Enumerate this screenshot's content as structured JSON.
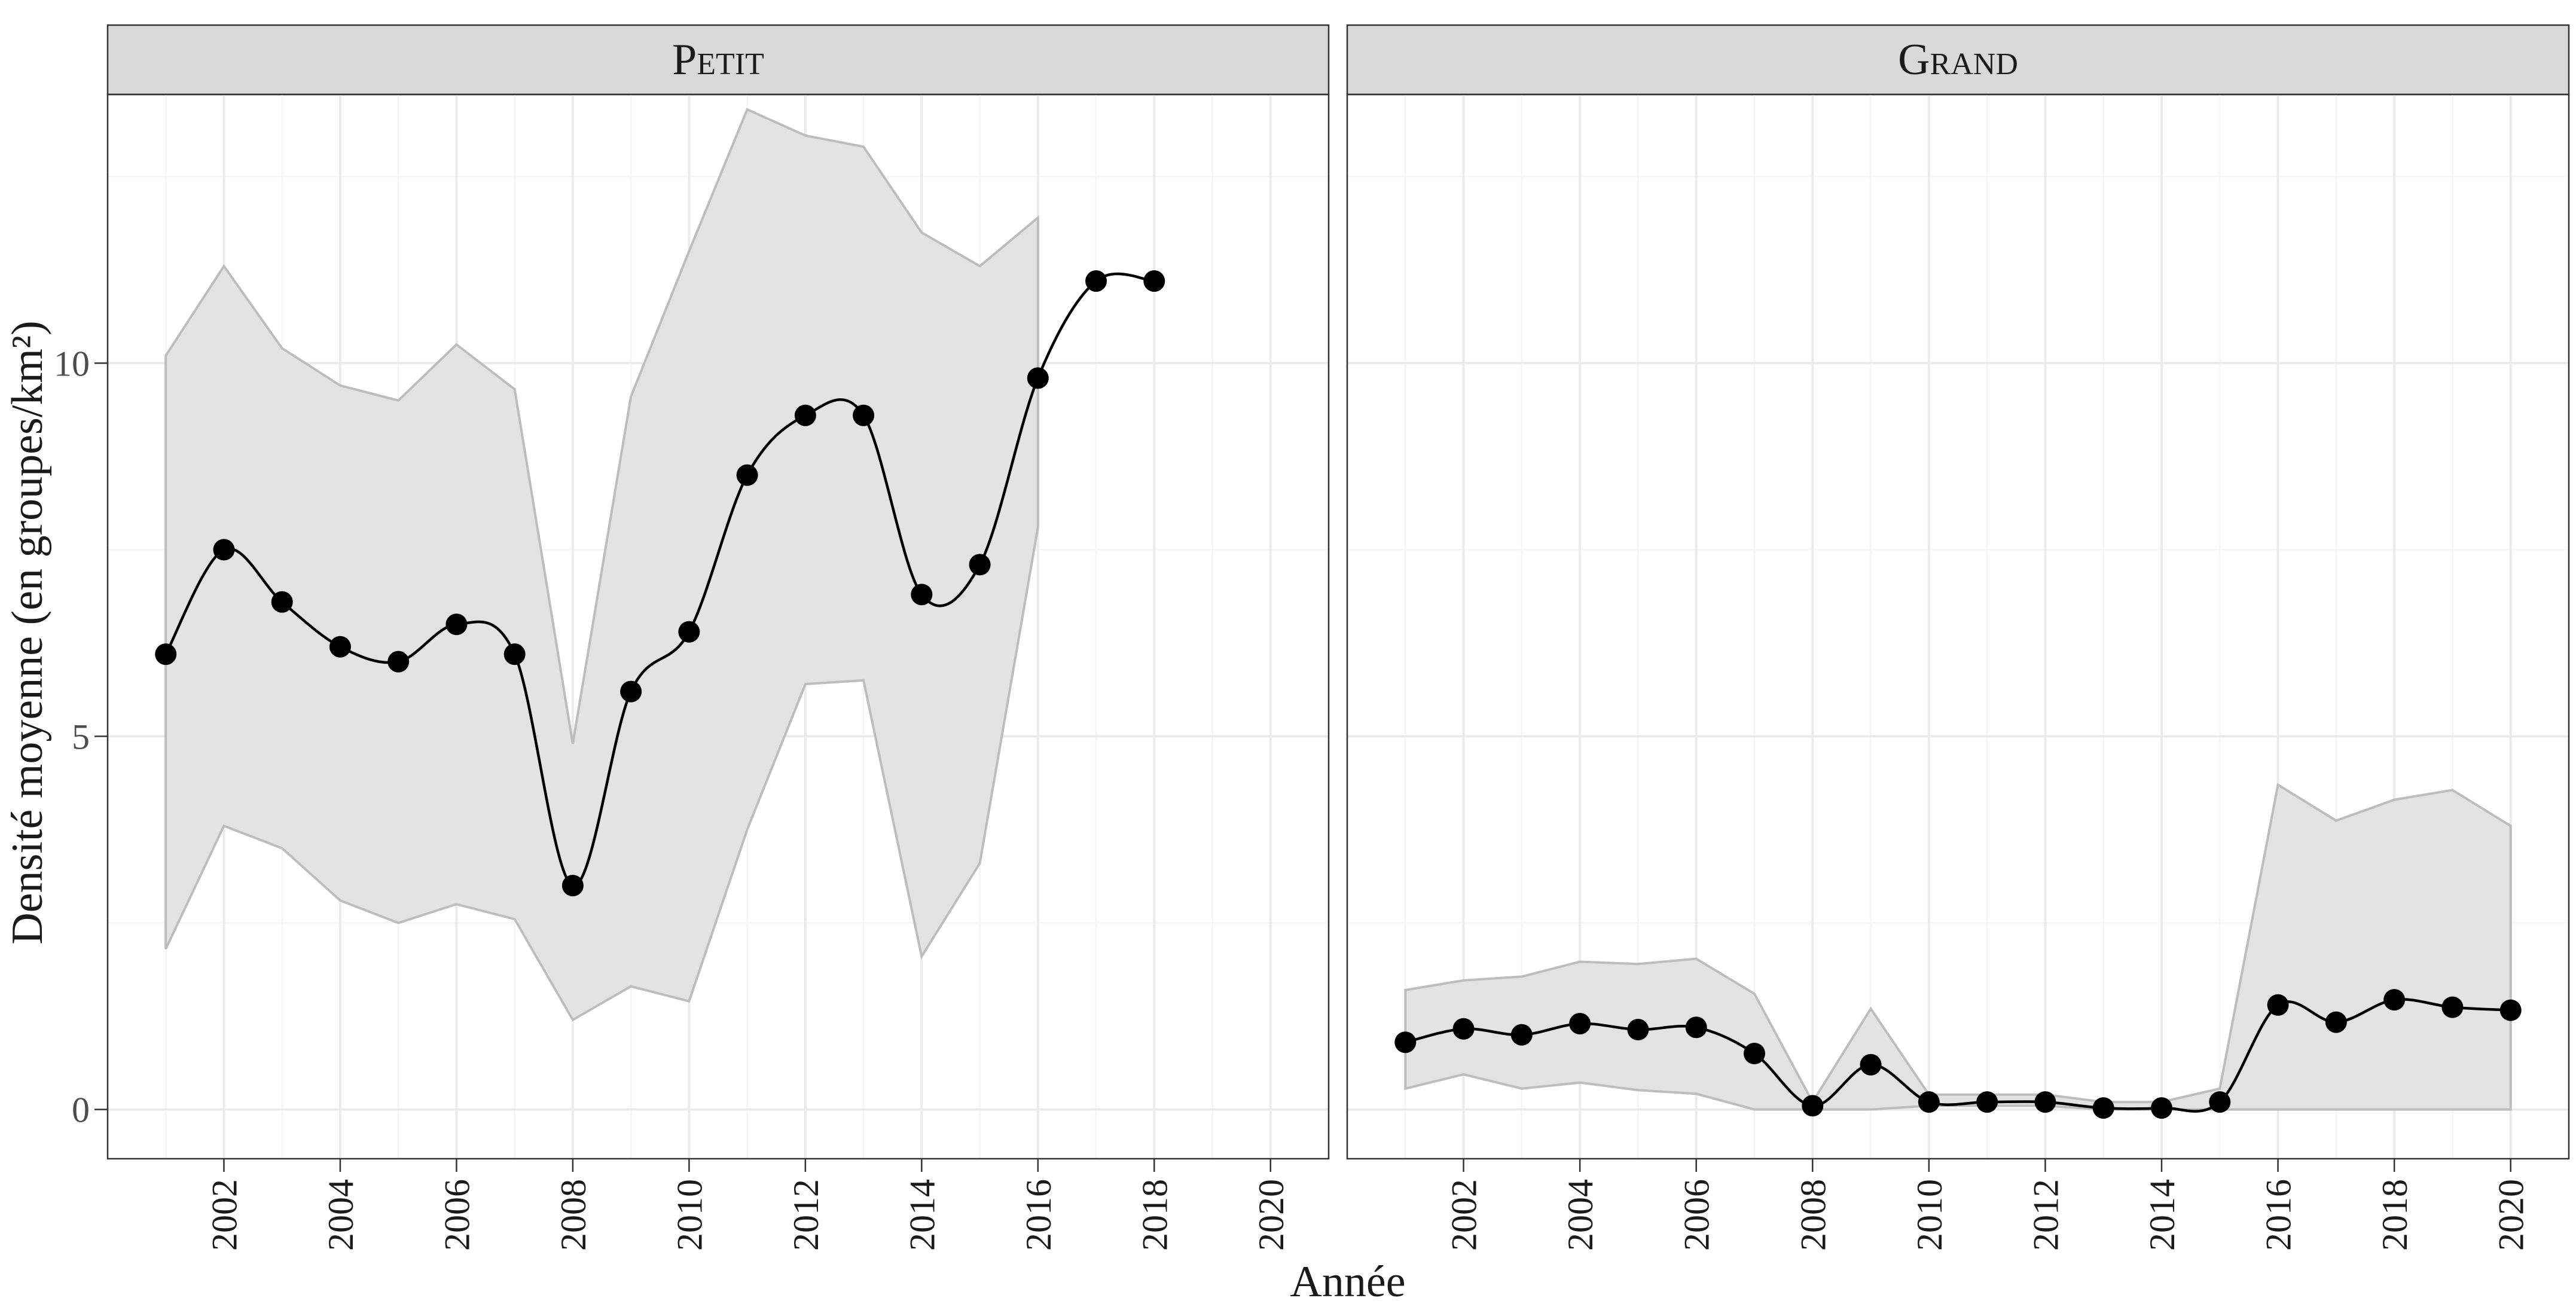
{
  "chart_data": {
    "type": "line",
    "xlabel": "Année",
    "ylabel": "Densité moyenne (en groupes/km²)",
    "x_ticks": [
      2002,
      2004,
      2006,
      2008,
      2010,
      2012,
      2014,
      2016,
      2018,
      2020
    ],
    "y_ticks": [
      0,
      5,
      10
    ],
    "y_tick_labels": [
      "0",
      "5",
      "10"
    ],
    "xlim": [
      2000,
      2021
    ],
    "ylim": [
      -0.66,
      13.6
    ],
    "grid": true,
    "facets": [
      {
        "label": "Petit",
        "points": [
          {
            "x": 2001,
            "y": 6.1
          },
          {
            "x": 2002,
            "y": 7.5
          },
          {
            "x": 2003,
            "y": 6.8
          },
          {
            "x": 2004,
            "y": 6.2
          },
          {
            "x": 2005,
            "y": 6.0
          },
          {
            "x": 2006,
            "y": 6.5
          },
          {
            "x": 2007,
            "y": 6.1
          },
          {
            "x": 2008,
            "y": 3.0
          },
          {
            "x": 2009,
            "y": 5.6
          },
          {
            "x": 2010,
            "y": 6.4
          },
          {
            "x": 2011,
            "y": 8.5
          },
          {
            "x": 2012,
            "y": 9.3
          },
          {
            "x": 2013,
            "y": 9.3
          },
          {
            "x": 2014,
            "y": 6.9
          },
          {
            "x": 2015,
            "y": 7.3
          },
          {
            "x": 2016,
            "y": 9.8
          },
          {
            "x": 2017,
            "y": 11.1
          },
          {
            "x": 2018,
            "y": 11.1
          }
        ],
        "ribbon": [
          {
            "x": 2001,
            "lower": 2.15,
            "upper": 10.1
          },
          {
            "x": 2002,
            "lower": 3.8,
            "upper": 11.3
          },
          {
            "x": 2003,
            "lower": 3.5,
            "upper": 10.2
          },
          {
            "x": 2004,
            "lower": 2.8,
            "upper": 9.7
          },
          {
            "x": 2005,
            "lower": 2.5,
            "upper": 9.5
          },
          {
            "x": 2006,
            "lower": 2.75,
            "upper": 10.25
          },
          {
            "x": 2007,
            "lower": 2.55,
            "upper": 9.65
          },
          {
            "x": 2008,
            "lower": 1.2,
            "upper": 4.9
          },
          {
            "x": 2009,
            "lower": 1.65,
            "upper": 9.55
          },
          {
            "x": 2010,
            "lower": 1.45,
            "upper": 11.5
          },
          {
            "x": 2011,
            "lower": 3.75,
            "upper": 13.4
          },
          {
            "x": 2012,
            "lower": 5.7,
            "upper": 13.05
          },
          {
            "x": 2013,
            "lower": 5.75,
            "upper": 12.9
          },
          {
            "x": 2014,
            "lower": 2.05,
            "upper": 11.75
          },
          {
            "x": 2015,
            "lower": 3.3,
            "upper": 11.3
          },
          {
            "x": 2016,
            "lower": 7.8,
            "upper": 11.95
          }
        ]
      },
      {
        "label": "Grand",
        "points": [
          {
            "x": 2001,
            "y": 0.9
          },
          {
            "x": 2002,
            "y": 1.08
          },
          {
            "x": 2003,
            "y": 1.0
          },
          {
            "x": 2004,
            "y": 1.15
          },
          {
            "x": 2005,
            "y": 1.07
          },
          {
            "x": 2006,
            "y": 1.1
          },
          {
            "x": 2007,
            "y": 0.75
          },
          {
            "x": 2008,
            "y": 0.05
          },
          {
            "x": 2009,
            "y": 0.6
          },
          {
            "x": 2010,
            "y": 0.1
          },
          {
            "x": 2011,
            "y": 0.1
          },
          {
            "x": 2012,
            "y": 0.1
          },
          {
            "x": 2013,
            "y": 0.02
          },
          {
            "x": 2014,
            "y": 0.02
          },
          {
            "x": 2015,
            "y": 0.1
          },
          {
            "x": 2016,
            "y": 1.4
          },
          {
            "x": 2017,
            "y": 1.17
          },
          {
            "x": 2018,
            "y": 1.47
          },
          {
            "x": 2019,
            "y": 1.37
          },
          {
            "x": 2020,
            "y": 1.33
          }
        ],
        "ribbon": [
          {
            "x": 2001,
            "lower": 0.28,
            "upper": 1.6
          },
          {
            "x": 2002,
            "lower": 0.47,
            "upper": 1.73
          },
          {
            "x": 2003,
            "lower": 0.28,
            "upper": 1.78
          },
          {
            "x": 2004,
            "lower": 0.36,
            "upper": 1.98
          },
          {
            "x": 2005,
            "lower": 0.26,
            "upper": 1.95
          },
          {
            "x": 2006,
            "lower": 0.21,
            "upper": 2.02
          },
          {
            "x": 2007,
            "lower": 0.0,
            "upper": 1.55
          },
          {
            "x": 2008,
            "lower": 0.0,
            "upper": 0.1
          },
          {
            "x": 2009,
            "lower": 0.0,
            "upper": 1.35
          },
          {
            "x": 2010,
            "lower": 0.05,
            "upper": 0.2
          },
          {
            "x": 2011,
            "lower": 0.05,
            "upper": 0.2
          },
          {
            "x": 2012,
            "lower": 0.05,
            "upper": 0.2
          },
          {
            "x": 2013,
            "lower": 0.0,
            "upper": 0.1
          },
          {
            "x": 2014,
            "lower": 0.0,
            "upper": 0.1
          },
          {
            "x": 2015,
            "lower": 0.0,
            "upper": 0.28
          },
          {
            "x": 2016,
            "lower": 0.0,
            "upper": 4.35
          },
          {
            "x": 2017,
            "lower": 0.0,
            "upper": 3.87
          },
          {
            "x": 2018,
            "lower": 0.0,
            "upper": 4.15
          },
          {
            "x": 2019,
            "lower": 0.0,
            "upper": 4.28
          },
          {
            "x": 2020,
            "lower": 0.0,
            "upper": 3.8
          }
        ]
      }
    ]
  }
}
